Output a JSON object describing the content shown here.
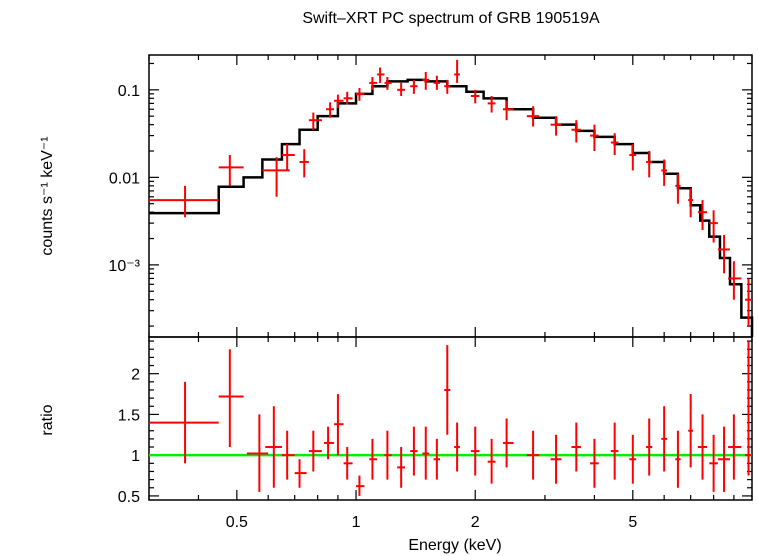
{
  "chart_data": [
    {
      "type": "scatter",
      "title": "Swift–XRT PC spectrum of GRB 190519A",
      "ylabel": "counts s⁻¹ keV⁻¹",
      "xscale": "log",
      "yscale": "log",
      "xlim": [
        0.3,
        10
      ],
      "ylim": [
        0.00015,
        0.25
      ],
      "yticks": [
        {
          "value": 0.1,
          "label": "0.1"
        },
        {
          "value": 0.01,
          "label": "0.01"
        },
        {
          "value": 0.001,
          "label": "10⁻³"
        }
      ],
      "colors": {
        "data": "#ff0000",
        "model": "#000000"
      },
      "data": {
        "x": [
          0.37,
          0.48,
          0.63,
          0.67,
          0.74,
          0.78,
          0.86,
          0.9,
          0.95,
          1.02,
          1.1,
          1.15,
          1.2,
          1.3,
          1.4,
          1.5,
          1.6,
          1.7,
          1.8,
          2.0,
          2.2,
          2.4,
          2.8,
          3.2,
          3.6,
          4.0,
          4.5,
          5.0,
          5.5,
          6.0,
          6.5,
          7.0,
          7.5,
          8.0,
          8.5,
          9.0,
          9.8
        ],
        "xlo": [
          0.3,
          0.45,
          0.58,
          0.65,
          0.72,
          0.76,
          0.84,
          0.88,
          0.93,
          1.0,
          1.08,
          1.13,
          1.18,
          1.27,
          1.37,
          1.47,
          1.57,
          1.67,
          1.77,
          1.95,
          2.15,
          2.35,
          2.7,
          3.1,
          3.5,
          3.9,
          4.4,
          4.9,
          5.4,
          5.9,
          6.4,
          6.9,
          7.3,
          7.8,
          8.2,
          8.7,
          9.6
        ],
        "xhi": [
          0.45,
          0.52,
          0.68,
          0.7,
          0.76,
          0.82,
          0.88,
          0.93,
          0.98,
          1.05,
          1.13,
          1.18,
          1.23,
          1.33,
          1.43,
          1.53,
          1.63,
          1.73,
          1.83,
          2.05,
          2.25,
          2.5,
          2.9,
          3.3,
          3.7,
          4.1,
          4.6,
          5.1,
          5.6,
          6.1,
          6.6,
          7.1,
          7.7,
          8.2,
          8.8,
          9.4,
          10.0
        ],
        "y": [
          0.0055,
          0.013,
          0.012,
          0.018,
          0.015,
          0.045,
          0.06,
          0.075,
          0.08,
          0.09,
          0.12,
          0.15,
          0.12,
          0.1,
          0.11,
          0.13,
          0.12,
          0.11,
          0.15,
          0.085,
          0.07,
          0.06,
          0.05,
          0.04,
          0.035,
          0.03,
          0.025,
          0.018,
          0.015,
          0.012,
          0.008,
          0.0055,
          0.004,
          0.003,
          0.0015,
          0.0007,
          0.0004
        ],
        "ylo": [
          0.0035,
          0.008,
          0.006,
          0.012,
          0.01,
          0.035,
          0.048,
          0.062,
          0.068,
          0.075,
          0.1,
          0.12,
          0.1,
          0.085,
          0.09,
          0.1,
          0.1,
          0.09,
          0.12,
          0.07,
          0.055,
          0.045,
          0.038,
          0.03,
          0.025,
          0.02,
          0.018,
          0.012,
          0.01,
          0.008,
          0.005,
          0.0035,
          0.0025,
          0.0018,
          0.0008,
          0.0004,
          0.0002
        ],
        "yhi": [
          0.008,
          0.018,
          0.017,
          0.024,
          0.021,
          0.055,
          0.072,
          0.088,
          0.095,
          0.105,
          0.14,
          0.18,
          0.14,
          0.12,
          0.13,
          0.16,
          0.145,
          0.13,
          0.22,
          0.1,
          0.085,
          0.075,
          0.065,
          0.05,
          0.045,
          0.04,
          0.032,
          0.024,
          0.02,
          0.016,
          0.011,
          0.0075,
          0.0055,
          0.0042,
          0.0022,
          0.0011,
          0.0007
        ]
      },
      "model": {
        "x": [
          0.3,
          0.45,
          0.52,
          0.58,
          0.65,
          0.72,
          0.8,
          0.9,
          1.0,
          1.1,
          1.2,
          1.35,
          1.5,
          1.7,
          1.9,
          2.1,
          2.4,
          2.8,
          3.2,
          3.6,
          4.0,
          4.5,
          5.0,
          5.5,
          6.0,
          6.5,
          7.0,
          7.4,
          7.8,
          8.3,
          8.8,
          9.4,
          10.0
        ],
        "y": [
          0.0039,
          0.0078,
          0.01,
          0.016,
          0.024,
          0.035,
          0.05,
          0.07,
          0.09,
          0.11,
          0.125,
          0.13,
          0.125,
          0.11,
          0.095,
          0.08,
          0.06,
          0.048,
          0.04,
          0.034,
          0.029,
          0.024,
          0.019,
          0.015,
          0.011,
          0.0075,
          0.0048,
          0.0032,
          0.0021,
          0.0012,
          0.0006,
          0.00025,
          0.00015
        ]
      }
    },
    {
      "type": "scatter",
      "xlabel": "Energy (keV)",
      "ylabel": "ratio",
      "xscale": "log",
      "xlim": [
        0.3,
        10
      ],
      "ylim": [
        0.45,
        2.45
      ],
      "xticks": [
        {
          "value": 0.5,
          "label": "0.5"
        },
        {
          "value": 1,
          "label": "1"
        },
        {
          "value": 2,
          "label": "2"
        },
        {
          "value": 5,
          "label": "5"
        }
      ],
      "yticks": [
        {
          "value": 0.5,
          "label": "0.5"
        },
        {
          "value": 1,
          "label": "1"
        },
        {
          "value": 1.5,
          "label": "1.5"
        },
        {
          "value": 2,
          "label": "2"
        }
      ],
      "reference_line": {
        "y": 1,
        "color": "#00ee00"
      },
      "colors": {
        "data": "#ff0000"
      },
      "data": {
        "x": [
          0.37,
          0.48,
          0.57,
          0.62,
          0.67,
          0.72,
          0.78,
          0.85,
          0.9,
          0.95,
          1.02,
          1.1,
          1.2,
          1.3,
          1.4,
          1.5,
          1.6,
          1.7,
          1.8,
          2.0,
          2.2,
          2.4,
          2.8,
          3.2,
          3.6,
          4.0,
          4.5,
          5.0,
          5.5,
          6.0,
          6.5,
          7.0,
          7.5,
          8.0,
          8.5,
          9.0,
          9.8
        ],
        "xlo": [
          0.3,
          0.45,
          0.53,
          0.59,
          0.65,
          0.7,
          0.76,
          0.83,
          0.88,
          0.93,
          1.0,
          1.08,
          1.18,
          1.27,
          1.37,
          1.47,
          1.57,
          1.67,
          1.77,
          1.95,
          2.15,
          2.35,
          2.7,
          3.1,
          3.5,
          3.9,
          4.4,
          4.9,
          5.4,
          5.9,
          6.4,
          6.9,
          7.3,
          7.8,
          8.2,
          8.7,
          9.6
        ],
        "xhi": [
          0.45,
          0.52,
          0.6,
          0.65,
          0.7,
          0.75,
          0.82,
          0.88,
          0.93,
          0.98,
          1.05,
          1.13,
          1.23,
          1.33,
          1.43,
          1.53,
          1.63,
          1.73,
          1.83,
          2.05,
          2.25,
          2.5,
          2.9,
          3.3,
          3.7,
          4.1,
          4.6,
          5.1,
          5.6,
          6.1,
          6.6,
          7.1,
          7.7,
          8.2,
          8.8,
          9.4,
          10.0
        ],
        "y": [
          1.4,
          1.72,
          1.02,
          1.1,
          1.0,
          0.78,
          1.05,
          1.15,
          1.38,
          0.9,
          0.62,
          0.95,
          1.0,
          0.85,
          1.05,
          1.02,
          0.95,
          1.8,
          1.1,
          1.05,
          0.92,
          1.15,
          1.0,
          0.95,
          1.1,
          0.9,
          1.05,
          0.95,
          1.1,
          1.2,
          0.95,
          1.3,
          1.1,
          0.9,
          0.95,
          1.1,
          1.0
        ],
        "ylo": [
          0.9,
          1.1,
          0.55,
          0.6,
          0.7,
          0.6,
          0.8,
          0.95,
          1.0,
          0.7,
          0.5,
          0.7,
          0.7,
          0.6,
          0.75,
          0.7,
          0.7,
          1.25,
          0.8,
          0.75,
          0.65,
          0.85,
          0.7,
          0.65,
          0.8,
          0.6,
          0.7,
          0.65,
          0.75,
          0.8,
          0.6,
          0.85,
          0.7,
          0.55,
          0.55,
          0.7,
          0.75
        ],
        "yhi": [
          1.9,
          2.3,
          1.5,
          1.6,
          1.3,
          0.95,
          1.3,
          1.35,
          1.75,
          1.1,
          0.75,
          1.2,
          1.3,
          1.1,
          1.35,
          1.35,
          1.2,
          2.35,
          1.4,
          1.35,
          1.2,
          1.45,
          1.3,
          1.25,
          1.4,
          1.2,
          1.4,
          1.25,
          1.45,
          1.6,
          1.3,
          1.75,
          1.5,
          1.25,
          1.35,
          1.5,
          2.4
        ]
      }
    }
  ]
}
